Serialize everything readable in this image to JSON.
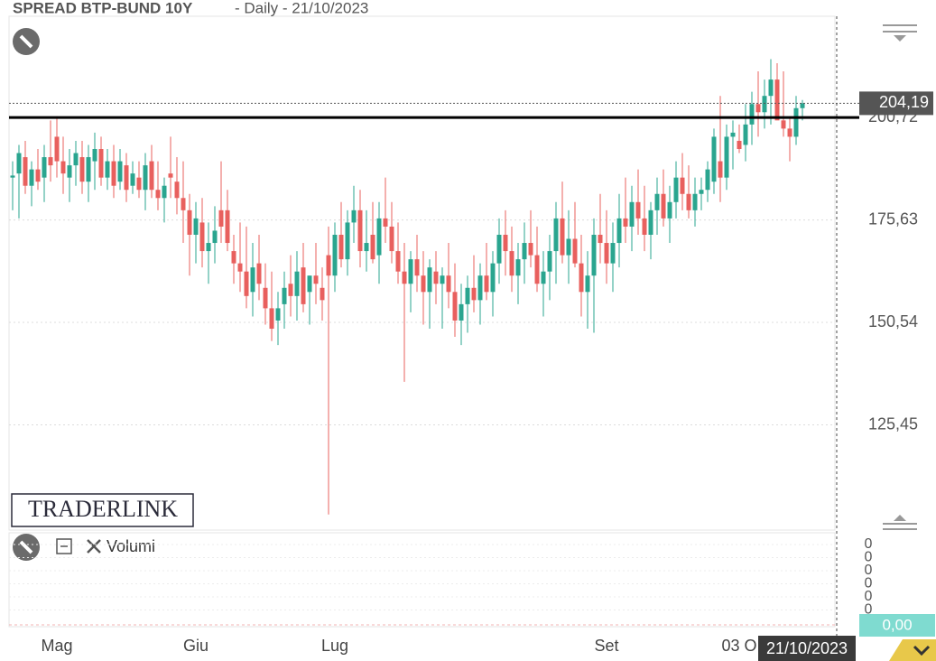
{
  "chart_data": {
    "type": "candlestick",
    "title": "SPREAD BTP-BUND 10Y",
    "subtitle": "- Daily - 21/10/2023",
    "watermark": "TRADERLINK",
    "panel_label": "Volumi",
    "cursor_date": "21/10/2023",
    "categories": [
      null,
      null,
      null,
      null,
      null,
      null,
      null,
      "Mag",
      null,
      null,
      null,
      null,
      null,
      null,
      null,
      null,
      null,
      null,
      null,
      null,
      null,
      null,
      null,
      null,
      null,
      null,
      null,
      null,
      null,
      "Giu",
      null,
      null,
      null,
      null,
      null,
      null,
      null,
      null,
      null,
      null,
      null,
      null,
      null,
      null,
      null,
      null,
      null,
      null,
      null,
      null,
      null,
      "Lug",
      null,
      null,
      null,
      null,
      null,
      null,
      null,
      null,
      null,
      null,
      null,
      null,
      null,
      null,
      null,
      null,
      null,
      null,
      null,
      null,
      null,
      null,
      null,
      null,
      null,
      null,
      null,
      null,
      null,
      null,
      null,
      null,
      null,
      null,
      null,
      null,
      null,
      null,
      null,
      null,
      null,
      null,
      "Set",
      null,
      null,
      null,
      null,
      null,
      null,
      null,
      null,
      null,
      null,
      null,
      null,
      null,
      null,
      null,
      null,
      null,
      null,
      null,
      null,
      "03 O",
      null,
      null,
      null,
      null,
      null,
      null,
      null,
      null,
      null,
      null
    ],
    "open": [
      186,
      187,
      191,
      184,
      188,
      186,
      191,
      196,
      190,
      186,
      189,
      191,
      185,
      190,
      193,
      186,
      190,
      185,
      189,
      184,
      186,
      183,
      190,
      183,
      181,
      187,
      185,
      181,
      178,
      172,
      175,
      168,
      170,
      178,
      178,
      168,
      165,
      163,
      158,
      165,
      159,
      154,
      151,
      155,
      160,
      157,
      164,
      158,
      162,
      159,
      167,
      162,
      172,
      166,
      175,
      178,
      168,
      172,
      167,
      176,
      174,
      168,
      163,
      160,
      166,
      162,
      158,
      163,
      160,
      162,
      158,
      151,
      155,
      159,
      156,
      162,
      158,
      165,
      172,
      168,
      162,
      166,
      170,
      167,
      160,
      163,
      168,
      176,
      167,
      171,
      165,
      158,
      162,
      172,
      170,
      165,
      170,
      176,
      174,
      180,
      176,
      172,
      178,
      182,
      176,
      180,
      186,
      182,
      178,
      182,
      183,
      185,
      190,
      186,
      196,
      195,
      194,
      199,
      204,
      202,
      206,
      210,
      200,
      198,
      196,
      203
    ],
    "high": [
      190,
      194,
      195,
      190,
      193,
      194,
      200,
      201,
      196,
      193,
      195,
      195,
      194,
      197,
      196,
      193,
      194,
      193,
      192,
      190,
      190,
      192,
      194,
      190,
      186,
      196,
      191,
      190,
      182,
      180,
      181,
      175,
      179,
      190,
      183,
      172,
      175,
      174,
      170,
      172,
      165,
      163,
      158,
      163,
      167,
      168,
      170,
      162,
      170,
      164,
      174,
      175,
      180,
      178,
      184,
      183,
      178,
      180,
      180,
      186,
      180,
      175,
      170,
      168,
      172,
      168,
      166,
      168,
      164,
      170,
      165,
      160,
      162,
      167,
      165,
      170,
      168,
      176,
      178,
      174,
      170,
      175,
      178,
      174,
      168,
      172,
      180,
      185,
      178,
      180,
      172,
      168,
      176,
      182,
      178,
      175,
      182,
      186,
      184,
      188,
      184,
      180,
      186,
      188,
      184,
      190,
      192,
      189,
      186,
      186,
      190,
      198,
      206,
      199,
      200,
      199,
      204,
      207,
      212,
      210,
      215,
      214,
      212,
      201,
      206,
      205
    ],
    "low": [
      178,
      176,
      182,
      179,
      183,
      180,
      185,
      186,
      182,
      180,
      184,
      182,
      180,
      183,
      184,
      183,
      181,
      183,
      180,
      182,
      181,
      178,
      181,
      178,
      175,
      181,
      177,
      170,
      162,
      165,
      164,
      160,
      165,
      170,
      168,
      160,
      158,
      154,
      152,
      156,
      150,
      146,
      145,
      149,
      152,
      151,
      153,
      150,
      155,
      151,
      103.5,
      158,
      164,
      162,
      170,
      164,
      163,
      165,
      160,
      170,
      165,
      160,
      136,
      153,
      158,
      150,
      149,
      155,
      149,
      154,
      147,
      145,
      148,
      153,
      150,
      156,
      152,
      160,
      162,
      158,
      155,
      160,
      164,
      158,
      152,
      156,
      160,
      165,
      160,
      164,
      152,
      149,
      148,
      165,
      160,
      158,
      164,
      170,
      168,
      172,
      168,
      166,
      172,
      174,
      170,
      176,
      178,
      176,
      174,
      178,
      180,
      182,
      180,
      183,
      188,
      192,
      190,
      194,
      196,
      198,
      199,
      201,
      196,
      190,
      194,
      200
    ],
    "close": [
      186.5,
      192,
      184,
      188,
      185,
      191,
      189,
      190,
      187,
      189,
      192,
      185,
      191,
      193,
      186,
      190,
      184,
      190,
      183,
      187,
      183,
      189,
      183,
      181,
      184,
      186,
      181,
      178,
      172,
      176,
      168,
      170,
      173,
      174,
      170,
      165,
      163,
      157,
      164,
      160,
      154,
      149,
      154,
      159,
      157,
      163,
      155,
      162,
      160,
      156,
      162,
      172,
      166,
      175,
      178,
      168,
      170,
      166,
      176,
      174,
      168,
      163,
      160,
      166,
      162,
      158,
      164,
      160,
      162,
      158,
      151,
      155,
      159,
      156,
      162,
      158,
      165,
      172,
      168,
      162,
      166,
      170,
      167,
      160,
      163,
      168,
      176,
      167,
      171,
      165,
      158,
      162,
      172,
      170,
      165,
      170,
      176,
      174,
      180,
      176,
      172,
      178,
      182,
      176,
      180,
      186,
      182,
      178,
      182,
      183,
      188,
      196,
      186,
      196,
      197,
      193,
      199,
      204,
      202,
      206,
      210,
      200,
      198,
      196,
      203,
      204.19
    ],
    "up_color": "#2aa58f",
    "down_color": "#e8605e",
    "ylim": [
      99.7,
      225.5
    ],
    "yticks": [
      {
        "value": 125.45,
        "label": "125,45"
      },
      {
        "value": 150.54,
        "label": "150,54"
      },
      {
        "value": 175.63,
        "label": "175,63"
      },
      {
        "value": 200.72,
        "label": "200,72"
      }
    ],
    "horizontal_line": 200.72,
    "last_price": {
      "value": 204.19,
      "label": "204,19"
    },
    "volume_ticks": [
      0,
      0,
      0,
      0,
      0,
      0
    ],
    "volume_value": {
      "value": 0,
      "label": "0,00"
    },
    "grid": true
  }
}
